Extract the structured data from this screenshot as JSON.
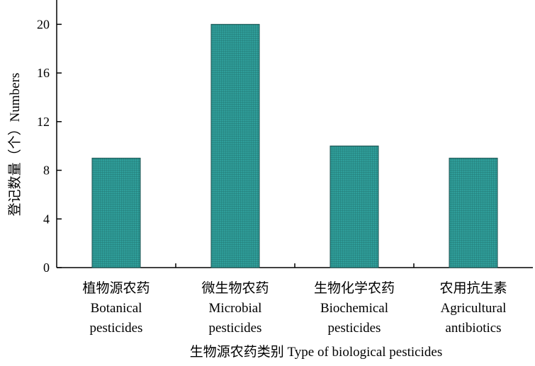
{
  "chart_data": {
    "type": "bar",
    "categories": [
      [
        "植物源农药",
        "Botanical",
        "pesticides"
      ],
      [
        "微生物农药",
        "Microbial",
        "pesticides"
      ],
      [
        "生物化学农药",
        "Biochemical",
        "pesticides"
      ],
      [
        "农用抗生素",
        "Agricultural",
        "antibiotics"
      ]
    ],
    "values": [
      9,
      20,
      10,
      9
    ],
    "xlabel": "生物源农药类别 Type of biological pesticides",
    "ylabel": "登记数量（个）Numbers",
    "ylim": [
      0,
      22
    ],
    "yticks": [
      0,
      4,
      8,
      12,
      16,
      20
    ],
    "grid": false,
    "bar_color": "#2f9e9a",
    "bar_pattern_color": "#1f6f6c"
  }
}
